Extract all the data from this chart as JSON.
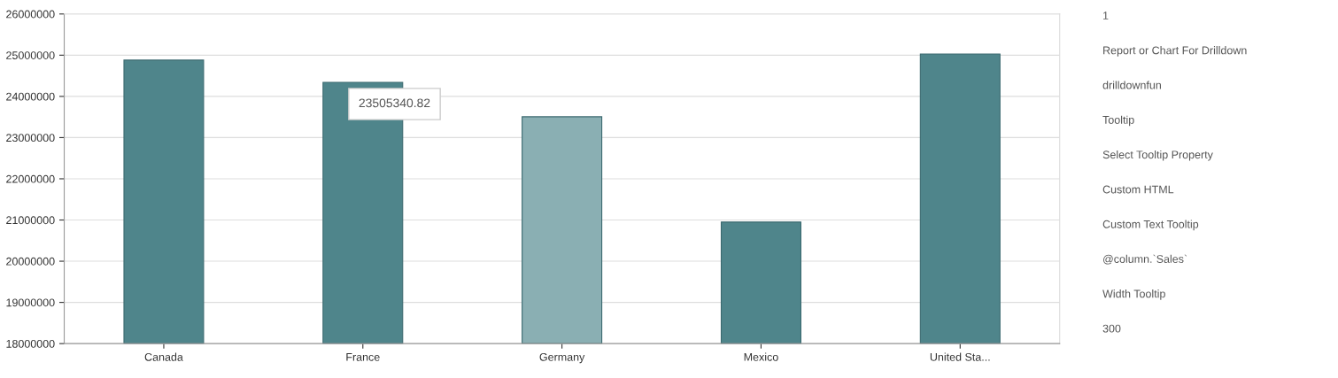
{
  "chart_data": {
    "type": "bar",
    "categories": [
      "Canada",
      "France",
      "Germany",
      "Mexico",
      "United Sta..."
    ],
    "values": [
      24880000,
      24340000,
      23505340.82,
      20950000,
      25030000
    ],
    "colors": [
      "#4f858b",
      "#4f858b",
      "#8aafb3",
      "#4f858b",
      "#4f858b"
    ],
    "ylim": [
      18000000,
      26000000
    ],
    "yticks": [
      18000000,
      19000000,
      20000000,
      21000000,
      22000000,
      23000000,
      24000000,
      25000000,
      26000000
    ],
    "grid": "y",
    "annotations": [
      "23505340.82",
      "1",
      "Report or Chart For Drilldown",
      "drilldownfun",
      "Tooltip",
      "Select Tooltip Property",
      "Custom HTML",
      "Custom Text Tooltip",
      "@column.`Sales`",
      "Width Tooltip",
      "300"
    ]
  }
}
